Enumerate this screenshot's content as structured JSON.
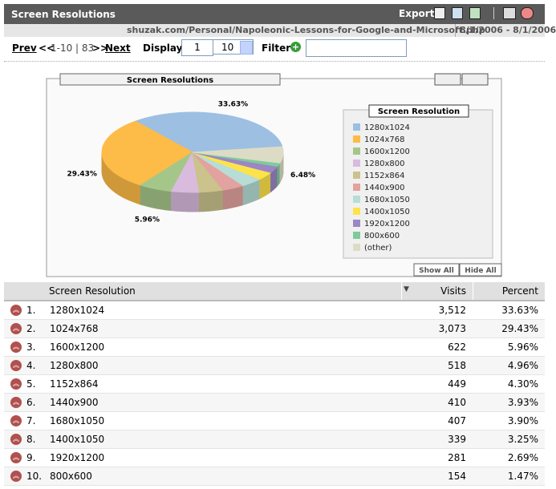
{
  "header": {
    "title": "Screen Resolutions",
    "export": "Export",
    "url": "shuzak.com/Personal/Napoleonic-Lessons-for-Google-and-Microsoft.php",
    "date_range": "8/1/2006 - 8/1/2006"
  },
  "nav": {
    "prev": "Prev",
    "back": "<<",
    "range": "1-10 | 83",
    "forward": ">>",
    "next": "Next",
    "display_label": "Display",
    "display_value": "1",
    "per_page": "10",
    "filter_label": "Filter"
  },
  "pie": {
    "type": "pie",
    "title": "Screen Resolutions",
    "legend_title": "Screen Resolution",
    "labels": [
      "1280x1024",
      "1024x768",
      "1600x1200",
      "1280x800",
      "1152x864",
      "1440x900",
      "1680x1050",
      "1400x1050",
      "1920x1200",
      "800x600",
      "(other)"
    ],
    "values": [
      33.63,
      29.43,
      5.96,
      4.96,
      4.3,
      3.93,
      3.9,
      3.25,
      2.69,
      1.47,
      6.48
    ],
    "value_labels": [
      "33.63%",
      "29.43%",
      "5.96%",
      null,
      null,
      null,
      null,
      null,
      null,
      null,
      "6.48%"
    ],
    "colors": [
      "#9dbfe2",
      "#fdbb47",
      "#a5c689",
      "#d8bbdd",
      "#cbc28c",
      "#e2a29f",
      "#b7ddd6",
      "#fde34b",
      "#9b86c6",
      "#80ca9b",
      "#dcdcc6"
    ],
    "show_all": "Show All",
    "hide_all": "Hide All"
  },
  "table": {
    "columns": [
      "Screen Resolution",
      "Visits",
      "Percent"
    ],
    "rows": [
      {
        "rank": "1.",
        "resolution": "1280x1024",
        "visits": "3,512",
        "percent": "33.63%"
      },
      {
        "rank": "2.",
        "resolution": "1024x768",
        "visits": "3,073",
        "percent": "29.43%"
      },
      {
        "rank": "3.",
        "resolution": "1600x1200",
        "visits": "622",
        "percent": "5.96%"
      },
      {
        "rank": "4.",
        "resolution": "1280x800",
        "visits": "518",
        "percent": "4.96%"
      },
      {
        "rank": "5.",
        "resolution": "1152x864",
        "visits": "449",
        "percent": "4.30%"
      },
      {
        "rank": "6.",
        "resolution": "1440x900",
        "visits": "410",
        "percent": "3.93%"
      },
      {
        "rank": "7.",
        "resolution": "1680x1050",
        "visits": "407",
        "percent": "3.90%"
      },
      {
        "rank": "8.",
        "resolution": "1400x1050",
        "visits": "339",
        "percent": "3.25%"
      },
      {
        "rank": "9.",
        "resolution": "1920x1200",
        "visits": "281",
        "percent": "2.69%"
      },
      {
        "rank": "10.",
        "resolution": "800x600",
        "visits": "154",
        "percent": "1.47%"
      }
    ]
  }
}
